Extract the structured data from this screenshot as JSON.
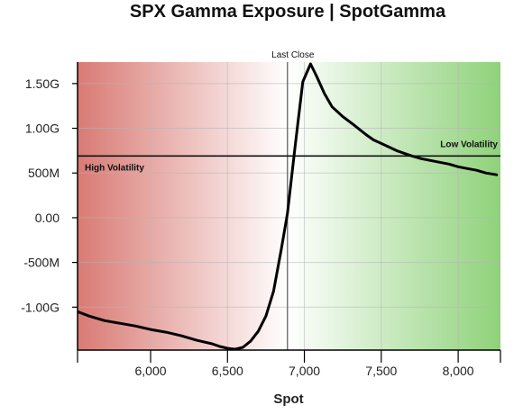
{
  "chart_data": {
    "type": "line",
    "title": "SPX Gamma Exposure | SpotGamma",
    "xlabel": "Spot",
    "ylabel": "",
    "xlim": [
      5525,
      8275
    ],
    "ylim": [
      -1480000000,
      1740000000
    ],
    "x_ticks": [
      {
        "value": 6000,
        "label": "6,000"
      },
      {
        "value": 6500,
        "label": "6,500"
      },
      {
        "value": 7000,
        "label": "7,000"
      },
      {
        "value": 7500,
        "label": "7,500"
      },
      {
        "value": 8000,
        "label": "8,000"
      }
    ],
    "y_ticks": [
      {
        "value": 1500000000,
        "label": "1.50G"
      },
      {
        "value": 1000000000,
        "label": "1.00G"
      },
      {
        "value": 500000000,
        "label": "500M"
      },
      {
        "value": 0,
        "label": "0.00"
      },
      {
        "value": -500000000,
        "label": "-500M"
      },
      {
        "value": -1000000000,
        "label": "-1.00G"
      }
    ],
    "grid": true,
    "background": {
      "type": "horizontal-gradient",
      "left_color": "#d97a74",
      "mid_color": "#ffffff",
      "right_color": "#8fd27a",
      "mid_value": 6890
    },
    "series": [
      {
        "color": "#000000",
        "x": [
          5525,
          5600,
          5700,
          5800,
          5900,
          6000,
          6100,
          6200,
          6300,
          6400,
          6450,
          6500,
          6550,
          6600,
          6650,
          6700,
          6750,
          6800,
          6850,
          6890,
          6940,
          6990,
          7040,
          7080,
          7130,
          7180,
          7250,
          7320,
          7400,
          7450,
          7500,
          7550,
          7600,
          7650,
          7700,
          7760,
          7820,
          7880,
          7940,
          8000,
          8060,
          8120,
          8180,
          8250
        ],
        "y": [
          -1050000000,
          -1100000000,
          -1150000000,
          -1180000000,
          -1210000000,
          -1250000000,
          -1280000000,
          -1320000000,
          -1370000000,
          -1410000000,
          -1440000000,
          -1460000000,
          -1470000000,
          -1450000000,
          -1380000000,
          -1270000000,
          -1100000000,
          -820000000,
          -350000000,
          50000000,
          800000000,
          1520000000,
          1720000000,
          1580000000,
          1390000000,
          1240000000,
          1130000000,
          1040000000,
          930000000,
          870000000,
          830000000,
          790000000,
          750000000,
          720000000,
          690000000,
          660000000,
          640000000,
          620000000,
          600000000,
          570000000,
          550000000,
          530000000,
          500000000,
          480000000
        ]
      }
    ],
    "reference_lines": {
      "last_close": {
        "x": 6890,
        "label": "Last Close"
      },
      "threshold": {
        "y": 690000000,
        "label_left": "High Volatility",
        "label_right": "Low Volatility"
      }
    }
  }
}
